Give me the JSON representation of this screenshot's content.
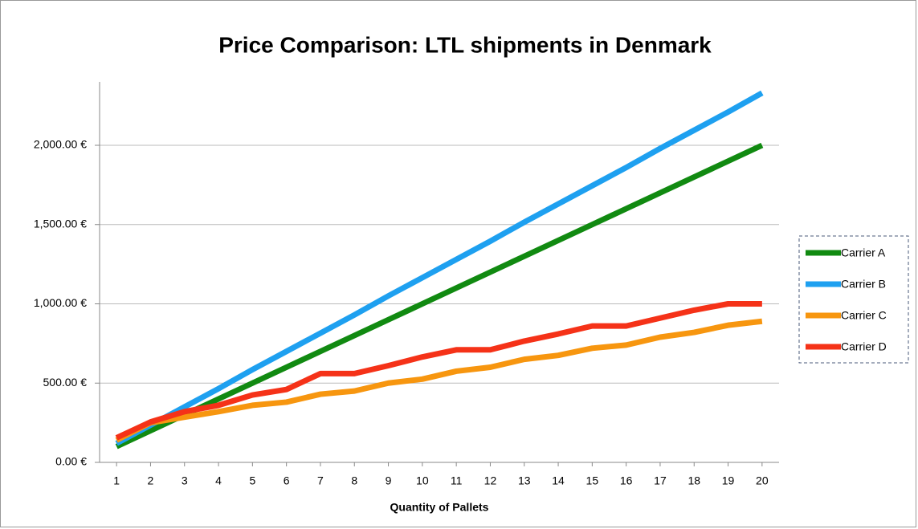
{
  "chart_data": {
    "type": "line",
    "title": "Price Comparison: LTL shipments in Denmark",
    "x_label": "Quantity of Pallets",
    "x": [
      1,
      2,
      3,
      4,
      5,
      6,
      7,
      8,
      9,
      10,
      11,
      12,
      13,
      14,
      15,
      16,
      17,
      18,
      19,
      20
    ],
    "xlim": [
      0.5,
      20.5
    ],
    "xticks": [
      1,
      2,
      3,
      4,
      5,
      6,
      7,
      8,
      9,
      10,
      11,
      12,
      13,
      14,
      15,
      16,
      17,
      18,
      19,
      20
    ],
    "ylim": [
      0,
      2400
    ],
    "yticks": [
      {
        "value": 0,
        "label": "0.00 €"
      },
      {
        "value": 500,
        "label": "500.00 €"
      },
      {
        "value": 1000,
        "label": "1,000.00 €"
      },
      {
        "value": 1500,
        "label": "1,500.00 €"
      },
      {
        "value": 2000,
        "label": "2,000.00 €"
      }
    ],
    "grid": true,
    "legend": "right",
    "series": [
      {
        "name": "Carrier A",
        "color": "#118a11",
        "values": [
          100,
          200,
          300,
          400,
          500,
          600,
          700,
          800,
          900,
          1000,
          1100,
          1200,
          1300,
          1400,
          1500,
          1600,
          1700,
          1800,
          1900,
          2000
        ]
      },
      {
        "name": "Carrier B",
        "color": "#1ea0f0",
        "values": [
          120,
          235,
          350,
          465,
          585,
          700,
          815,
          930,
          1050,
          1165,
          1280,
          1395,
          1515,
          1630,
          1745,
          1860,
          1980,
          2095,
          2210,
          2330
        ]
      },
      {
        "name": "Carrier C",
        "color": "#f7960f",
        "values": [
          140,
          250,
          285,
          320,
          360,
          380,
          430,
          450,
          500,
          525,
          575,
          600,
          650,
          675,
          720,
          740,
          790,
          820,
          865,
          890
        ]
      },
      {
        "name": "Carrier D",
        "color": "#f53218",
        "values": [
          155,
          255,
          320,
          360,
          425,
          460,
          560,
          560,
          610,
          665,
          710,
          710,
          765,
          810,
          860,
          860,
          910,
          960,
          1000,
          1000
        ]
      }
    ]
  }
}
